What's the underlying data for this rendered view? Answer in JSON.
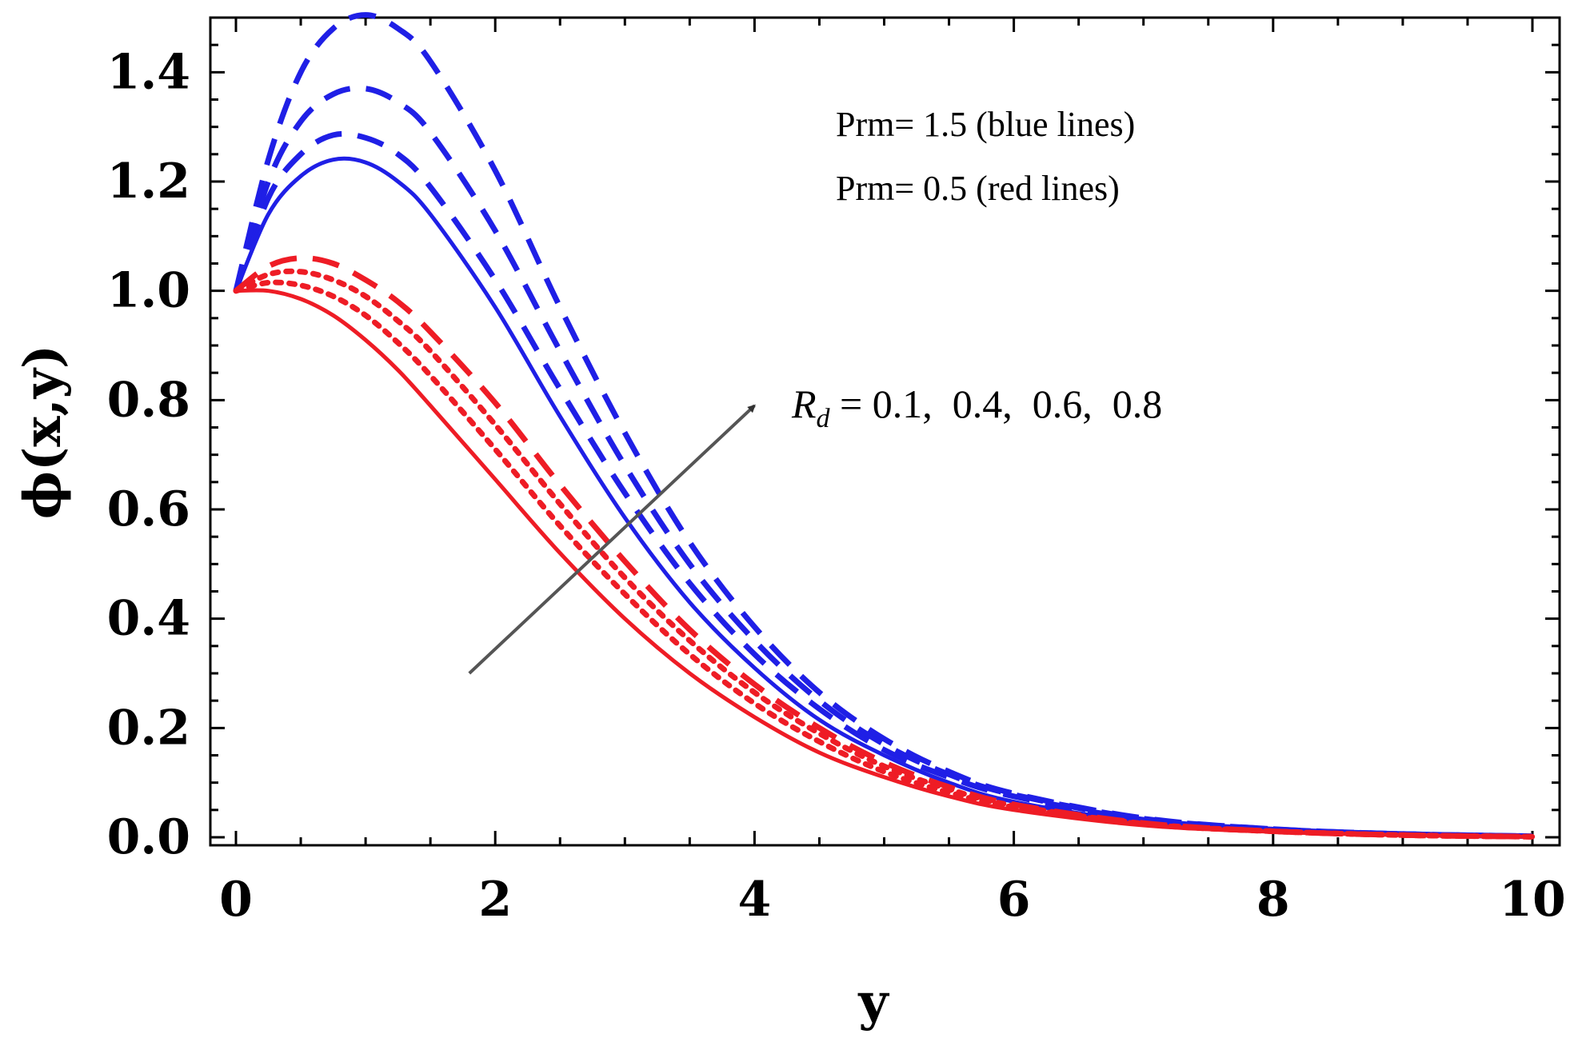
{
  "chart_data": {
    "type": "line",
    "title": "",
    "xlabel": "y",
    "ylabel": "ϕ(x,y)",
    "xlim": [
      0,
      10
    ],
    "ylim": [
      0,
      1.5
    ],
    "x_ticks": [
      "0",
      "2",
      "4",
      "6",
      "8",
      "10"
    ],
    "y_ticks": [
      "0.0",
      "0.2",
      "0.4",
      "0.6",
      "0.8",
      "1.0",
      "1.2",
      "1.4"
    ],
    "grid": false,
    "colors": {
      "blue": "#1f1fe6",
      "red": "#ee1c25",
      "arrow": "#555555"
    },
    "x": [
      0,
      0.25,
      0.5,
      0.75,
      1,
      1.25,
      1.5,
      2,
      2.5,
      3,
      3.5,
      4,
      4.5,
      5,
      5.5,
      6,
      7,
      8,
      9,
      10
    ],
    "series": [
      {
        "group": "Prm = 1.5",
        "color": "blue",
        "dash": "solid",
        "values": [
          1.0,
          1.14,
          1.21,
          1.24,
          1.235,
          1.2,
          1.14,
          0.97,
          0.77,
          0.585,
          0.43,
          0.31,
          0.215,
          0.15,
          0.1,
          0.065,
          0.028,
          0.012,
          0.005,
          0.002
        ]
      },
      {
        "group": "Prm = 1.5",
        "color": "blue",
        "dash": "dashed",
        "values": [
          1.0,
          1.17,
          1.25,
          1.285,
          1.28,
          1.25,
          1.19,
          1.02,
          0.82,
          0.63,
          0.465,
          0.335,
          0.235,
          0.16,
          0.11,
          0.075,
          0.032,
          0.014,
          0.006,
          0.002
        ]
      },
      {
        "group": "Prm = 1.5",
        "color": "blue",
        "dash": "dashed",
        "values": [
          1.0,
          1.2,
          1.31,
          1.36,
          1.37,
          1.345,
          1.29,
          1.11,
          0.89,
          0.68,
          0.5,
          0.36,
          0.25,
          0.17,
          0.115,
          0.078,
          0.034,
          0.015,
          0.006,
          0.002
        ]
      },
      {
        "group": "Prm = 1.5",
        "color": "blue",
        "dash": "dashed",
        "values": [
          1.0,
          1.24,
          1.4,
          1.48,
          1.505,
          1.48,
          1.42,
          1.22,
          0.97,
          0.74,
          0.54,
          0.385,
          0.265,
          0.18,
          0.12,
          0.08,
          0.035,
          0.015,
          0.006,
          0.002
        ]
      },
      {
        "group": "Prm = 0.5",
        "color": "red",
        "dash": "solid",
        "values": [
          1.0,
          1.0,
          0.985,
          0.955,
          0.91,
          0.855,
          0.79,
          0.655,
          0.52,
          0.4,
          0.3,
          0.22,
          0.155,
          0.11,
          0.075,
          0.05,
          0.022,
          0.01,
          0.004,
          0.001
        ]
      },
      {
        "group": "Prm = 0.5",
        "color": "red",
        "dash": "dotted",
        "values": [
          1.0,
          1.015,
          1.01,
          0.99,
          0.955,
          0.905,
          0.845,
          0.71,
          0.57,
          0.445,
          0.335,
          0.245,
          0.175,
          0.12,
          0.082,
          0.055,
          0.024,
          0.011,
          0.004,
          0.001
        ]
      },
      {
        "group": "Prm = 0.5",
        "color": "red",
        "dash": "dotted",
        "values": [
          1.0,
          1.03,
          1.035,
          1.02,
          0.99,
          0.945,
          0.89,
          0.755,
          0.61,
          0.475,
          0.36,
          0.265,
          0.19,
          0.13,
          0.088,
          0.058,
          0.025,
          0.011,
          0.004,
          0.001
        ]
      },
      {
        "group": "Prm = 0.5",
        "color": "red",
        "dash": "dashed",
        "values": [
          1.0,
          1.045,
          1.06,
          1.05,
          1.02,
          0.98,
          0.925,
          0.795,
          0.645,
          0.505,
          0.38,
          0.28,
          0.2,
          0.137,
          0.092,
          0.06,
          0.026,
          0.011,
          0.004,
          0.001
        ]
      }
    ],
    "annotations": {
      "legend_blue": "Prm= 1.5 (blue lines)",
      "legend_red": "Prm= 0.5 (red lines)",
      "rd_symbol": "R",
      "rd_subscript": "d",
      "rd_values": " = 0.1,  0.4,  0.6,  0.8"
    },
    "arrow": {
      "from": [
        1.8,
        0.3
      ],
      "to": [
        4.0,
        0.79
      ]
    }
  }
}
